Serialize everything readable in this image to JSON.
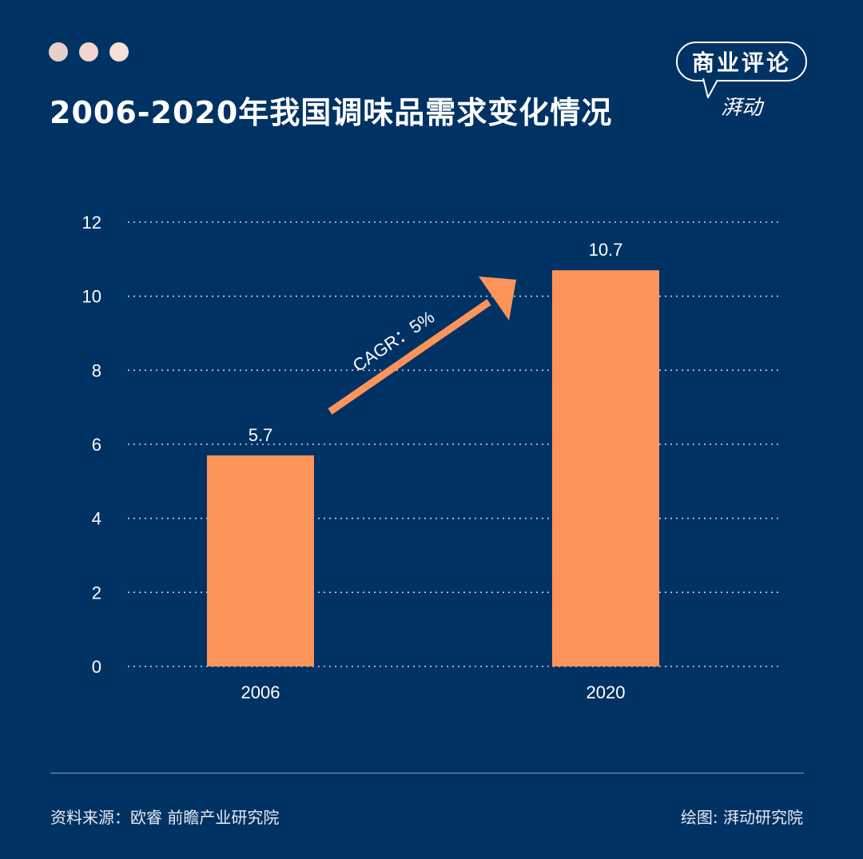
{
  "header": {
    "dot_colors": [
      "#e8cfc9",
      "#f0d6cf",
      "#f5e1d6"
    ],
    "title": "2006-2020年我国调味品需求变化情况"
  },
  "logo": {
    "main": "商业评论",
    "sub": "湃动"
  },
  "chart_data": {
    "type": "bar",
    "categories": [
      "2006",
      "2020"
    ],
    "values": [
      5.7,
      10.7
    ],
    "data_labels": [
      "5.7",
      "10.7"
    ],
    "ylim": [
      0,
      12
    ],
    "yticks": [
      "0",
      "2",
      "4",
      "6",
      "8",
      "10",
      "12"
    ],
    "grid": true,
    "bar_color": "#ff945a",
    "annotation": "CAGR：5%"
  },
  "footer": {
    "source": "资料来源：欧睿 前瞻产业研究院",
    "credit": "绘图: 湃动研究院"
  }
}
